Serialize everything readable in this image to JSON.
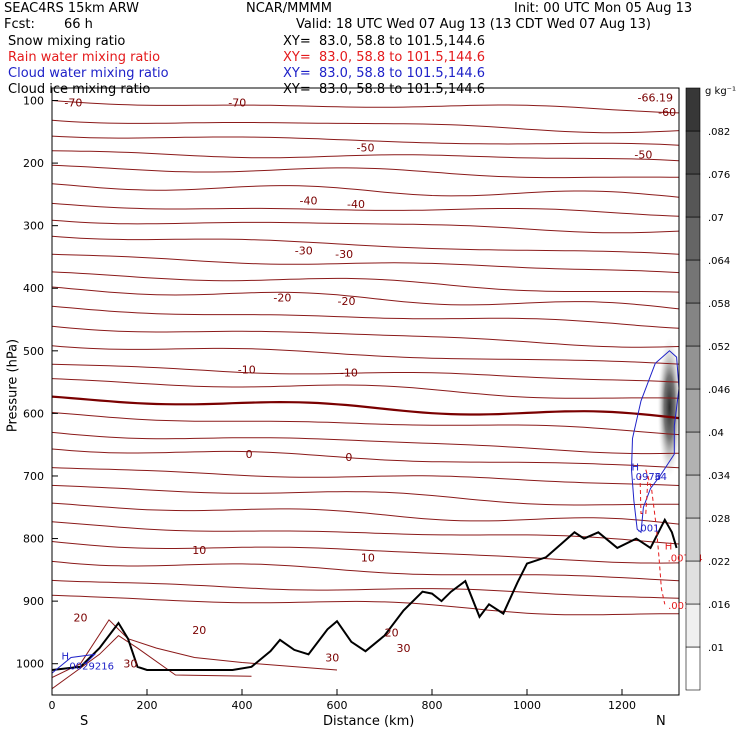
{
  "header": {
    "title_left": "SEAC4RS 15km ARW",
    "title_center": "NCAR/MMMM",
    "init": "Init: 00 UTC Mon 05 Aug 13",
    "fcst_label": "Fcst:",
    "fcst_value": "66 h",
    "valid": "Valid: 18 UTC Wed 07 Aug 13 (13 CDT Wed 07 Aug 13)",
    "fields": [
      {
        "name": "Snow mixing ratio",
        "xy": "XY=  83.0, 58.8 to 101.5,144.6",
        "color": "#000000"
      },
      {
        "name": "Rain water mixing ratio",
        "xy": "XY=  83.0, 58.8 to 101.5,144.6",
        "color": "#e41a1c"
      },
      {
        "name": "Cloud water mixing ratio",
        "xy": "XY=  83.0, 58.8 to 101.5,144.6",
        "color": "#1f22c8"
      },
      {
        "name": "Cloud ice mixing ratio",
        "xy": "XY=  83.0, 58.8 to 101.5,144.6",
        "color": "#000000"
      }
    ]
  },
  "chart_data": {
    "type": "cross-section contour",
    "xlabel": "Distance (km)",
    "ylabel": "Pressure (hPa)",
    "x_ticks": [
      0,
      200,
      400,
      600,
      800,
      1000,
      1200
    ],
    "xlim": [
      0,
      1320
    ],
    "y_ticks": [
      100,
      200,
      300,
      400,
      500,
      600,
      700,
      800,
      900,
      1000
    ],
    "ylim": [
      1050,
      80
    ],
    "endpoints": {
      "left": "S",
      "right": "N"
    },
    "colorbar": {
      "unit": "g kg⁻¹",
      "levels": [
        ".01",
        ".016",
        ".022",
        ".028",
        ".034",
        ".04",
        ".046",
        ".052",
        ".058",
        ".064",
        ".07",
        ".076",
        ".082"
      ]
    },
    "temperature_labels": [
      {
        "x": 45,
        "p": 103,
        "text": "-70"
      },
      {
        "x": 390,
        "p": 103,
        "text": "-70"
      },
      {
        "x": 1270,
        "p": 95,
        "text": "-66.19"
      },
      {
        "x": 1295,
        "p": 118,
        "text": "-60"
      },
      {
        "x": 660,
        "p": 175,
        "text": "-50"
      },
      {
        "x": 1245,
        "p": 186,
        "text": "-50"
      },
      {
        "x": 540,
        "p": 260,
        "text": "-40"
      },
      {
        "x": 640,
        "p": 265,
        "text": "-40"
      },
      {
        "x": 530,
        "p": 340,
        "text": "-30"
      },
      {
        "x": 615,
        "p": 345,
        "text": "-30"
      },
      {
        "x": 485,
        "p": 415,
        "text": "-20"
      },
      {
        "x": 620,
        "p": 420,
        "text": "-20"
      },
      {
        "x": 410,
        "p": 530,
        "text": "-10"
      },
      {
        "x": 625,
        "p": 535,
        "text": "-10"
      },
      {
        "x": 415,
        "p": 665,
        "text": "0"
      },
      {
        "x": 625,
        "p": 670,
        "text": "0"
      },
      {
        "x": 310,
        "p": 818,
        "text": "10"
      },
      {
        "x": 665,
        "p": 830,
        "text": "10"
      },
      {
        "x": 60,
        "p": 926,
        "text": "20"
      },
      {
        "x": 310,
        "p": 946,
        "text": "20"
      },
      {
        "x": 715,
        "p": 950,
        "text": "20"
      },
      {
        "x": 590,
        "p": 990,
        "text": "30"
      },
      {
        "x": 740,
        "p": 975,
        "text": "30"
      },
      {
        "x": 165,
        "p": 1000,
        "text": "30"
      }
    ],
    "cloud_labels": [
      {
        "x": 1220,
        "p": 685,
        "text": "H",
        "color": "#1f22c8"
      },
      {
        "x": 1222,
        "p": 700,
        "text": ".0976",
        "color": "#1f22c8"
      },
      {
        "x": 1268,
        "p": 700,
        "text": "34",
        "color": "#1f22c8"
      },
      {
        "x": 1232,
        "p": 782,
        "text": ".001",
        "color": "#1f22c8"
      },
      {
        "x": 1290,
        "p": 811,
        "text": "H",
        "color": "#e41a1c"
      },
      {
        "x": 1296,
        "p": 830,
        "text": ".00774",
        "color": "#e41a1c"
      },
      {
        "x": 1297,
        "p": 906,
        "text": ".001",
        "color": "#e41a1c"
      },
      {
        "x": 20,
        "p": 987,
        "text": "H",
        "color": "#1f22c8"
      },
      {
        "x": 30,
        "p": 1003,
        "text": ".0029216",
        "color": "#1f22c8"
      }
    ]
  }
}
